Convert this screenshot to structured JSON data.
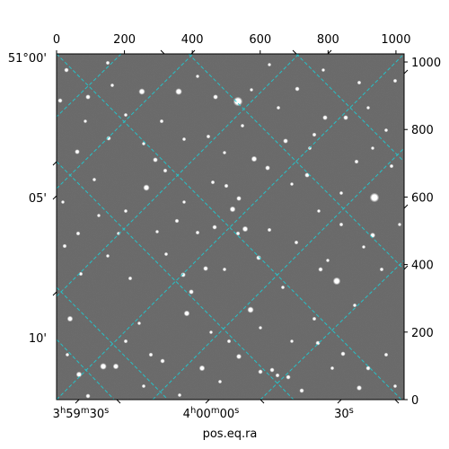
{
  "image": {
    "description_type": "astronomical-fits-view",
    "background_color": "#6e6e6e",
    "grid_color": "#1ecbd2"
  },
  "axes": {
    "top_ticks": [
      "0",
      "200",
      "400",
      "600",
      "800",
      "1000"
    ],
    "right_ticks": [
      "0",
      "200",
      "400",
      "600",
      "800",
      "1000"
    ],
    "left_ticks": [
      "51°00'",
      "05'",
      "10'"
    ],
    "bottom_ticks": [
      {
        "main": "3",
        "sup1": "h",
        "mid": "59",
        "sup2": "m",
        "tail": "30",
        "sup3": "s"
      },
      {
        "main": "4",
        "sup1": "h",
        "mid": "00",
        "sup2": "m",
        "tail": "00",
        "sup3": "s"
      },
      {
        "main": "30",
        "sup1": "",
        "mid": "",
        "sup2": "",
        "tail": "",
        "sup3": "s"
      }
    ],
    "xlabel": "pos.eq.ra"
  }
}
